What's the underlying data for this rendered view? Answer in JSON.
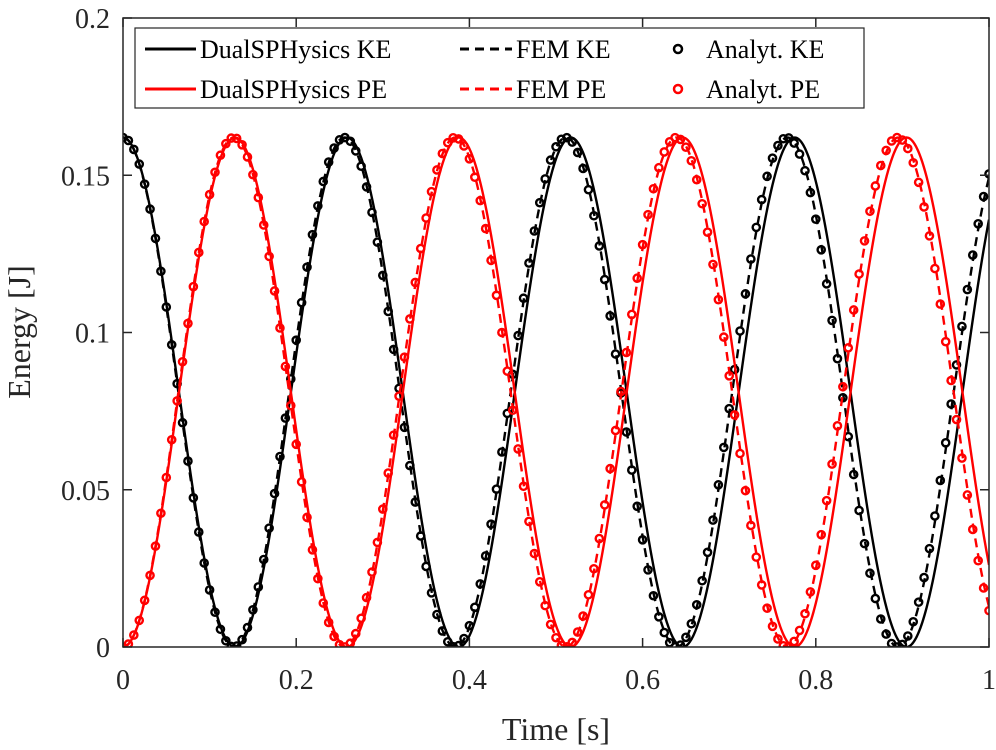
{
  "chart_data": {
    "type": "line",
    "title": "",
    "xlabel": "Time [s]",
    "ylabel": "Energy [J]",
    "xlim": [
      0,
      1
    ],
    "ylim": [
      0,
      0.2
    ],
    "xticks": [
      0,
      0.2,
      0.4,
      0.6,
      0.8,
      1
    ],
    "xtick_labels": [
      "0",
      "0.2",
      "0.4",
      "0.6",
      "0.8",
      "1"
    ],
    "yticks": [
      0,
      0.05,
      0.1,
      0.15,
      0.2
    ],
    "ytick_labels": [
      "0",
      "0.05",
      "0.1",
      "0.15",
      "0.2"
    ],
    "grid": false,
    "legend_position": "top",
    "colors": {
      "ke": "#000000",
      "pe": "#ff0000",
      "axis": "#262626"
    },
    "energy_amplitude": 0.162,
    "series": [
      {
        "name": "DualSPHysics KE",
        "kind": "KE",
        "style": "solid",
        "color": "#000000",
        "period": 0.2585,
        "samples": 1000
      },
      {
        "name": "FEM KE",
        "kind": "KE",
        "style": "dashed",
        "color": "#000000",
        "period": 0.2558,
        "samples": 1000
      },
      {
        "name": "Analyt. KE",
        "kind": "KE",
        "style": "markers",
        "color": "#000000",
        "period": 0.2555,
        "samples": 160
      },
      {
        "name": "DualSPHysics PE",
        "kind": "PE",
        "style": "solid",
        "color": "#ff0000",
        "period": 0.2585,
        "samples": 1000
      },
      {
        "name": "FEM PE",
        "kind": "PE",
        "style": "dashed",
        "color": "#ff0000",
        "period": 0.2558,
        "samples": 1000
      },
      {
        "name": "Analyt. PE",
        "kind": "PE",
        "style": "markers",
        "color": "#ff0000",
        "period": 0.2555,
        "samples": 160
      }
    ]
  }
}
